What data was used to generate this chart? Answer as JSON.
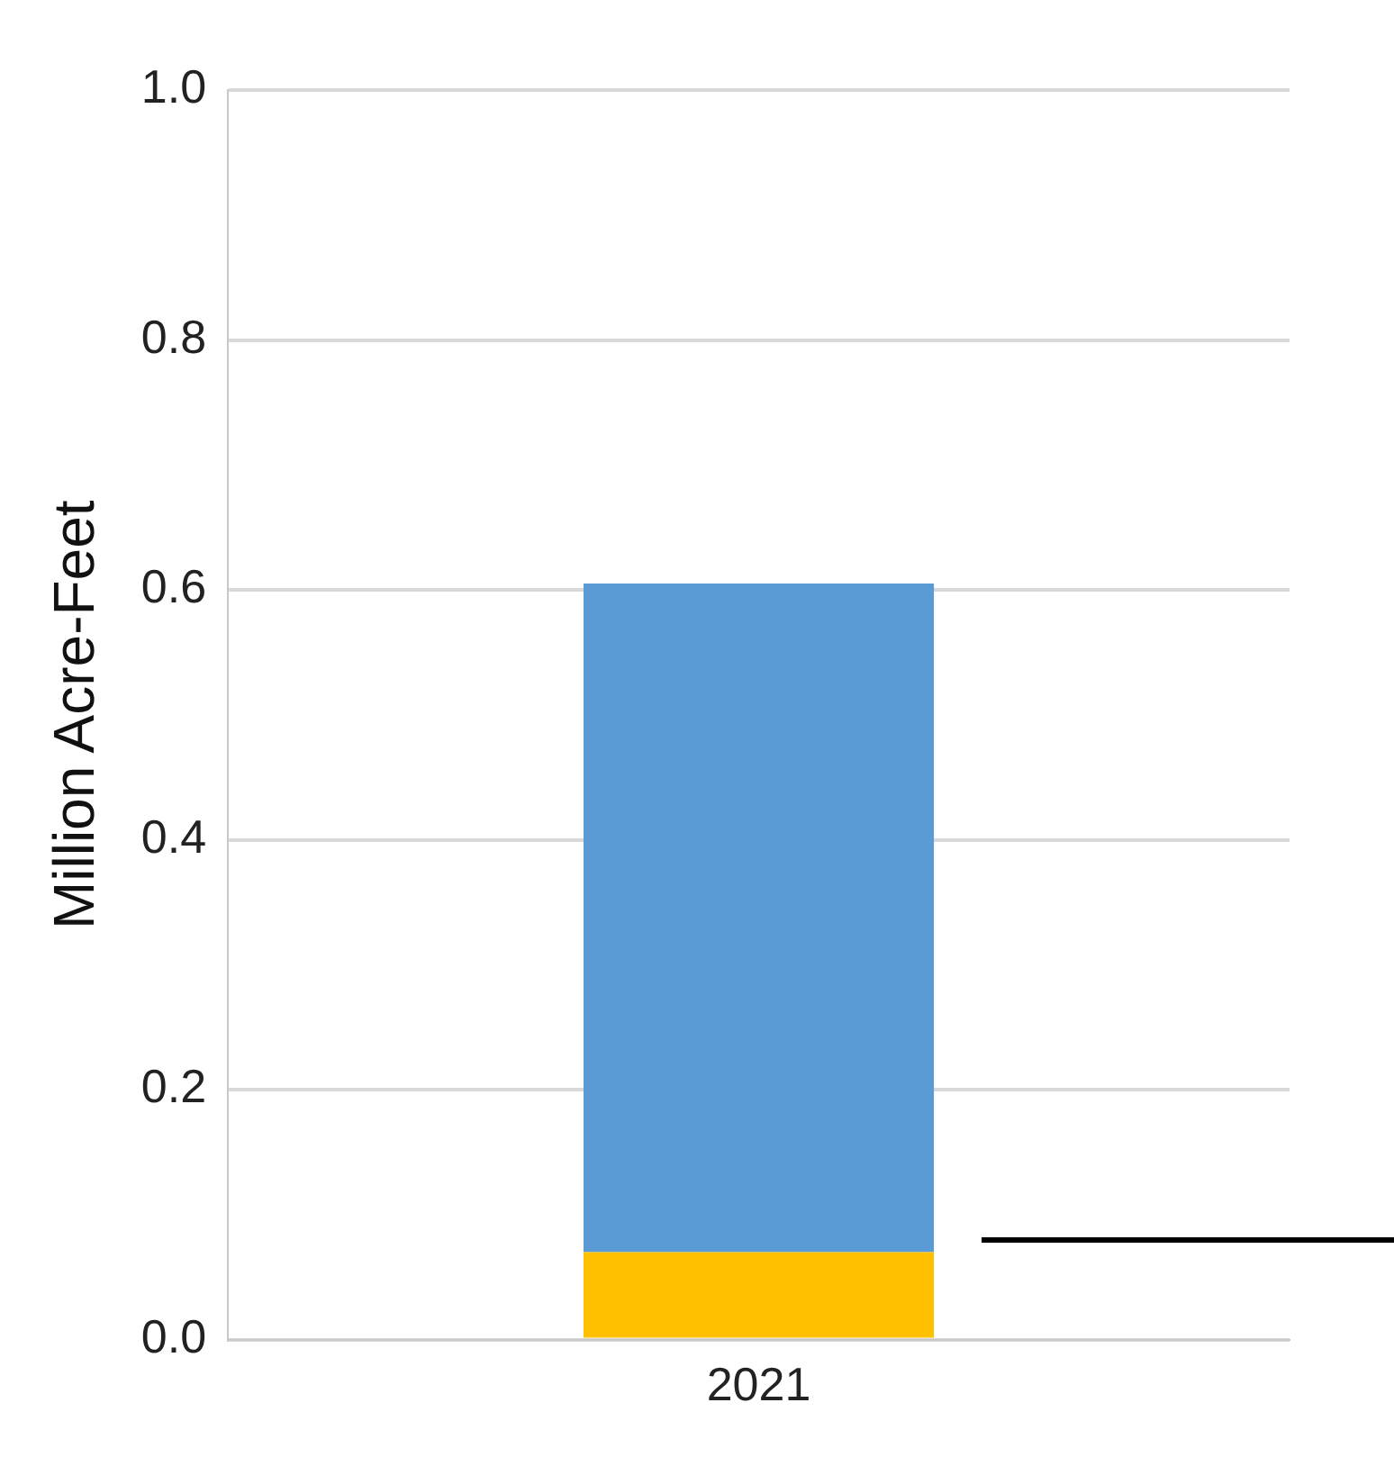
{
  "chart_data": {
    "type": "bar",
    "stacked": true,
    "ylabel": "Million Acre-Feet",
    "categories": [
      "2021"
    ],
    "series": [
      {
        "color": "#ffc000",
        "values": [
          0.07
        ]
      },
      {
        "color": "#5b9bd5",
        "values": [
          0.535
        ]
      }
    ],
    "ylim": [
      0,
      1.0
    ],
    "yticks": [
      {
        "value": 0,
        "label": "0.0"
      },
      {
        "value": 0.2,
        "label": "0.2"
      },
      {
        "value": 0.4,
        "label": "0.4"
      },
      {
        "value": 0.6,
        "label": "0.6"
      },
      {
        "value": 0.8,
        "label": "0.8"
      },
      {
        "value": 1.0,
        "label": "1.0"
      }
    ],
    "grid": "y",
    "legend": false
  }
}
